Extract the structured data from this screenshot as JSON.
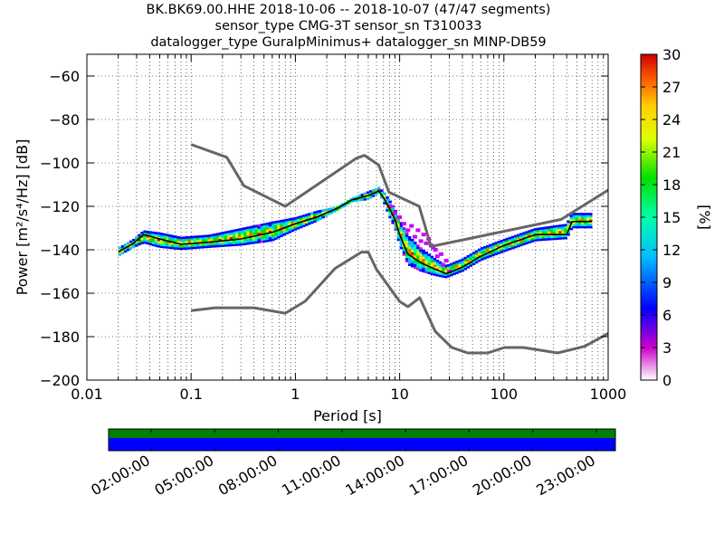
{
  "header": {
    "line1": "BK.BK69.00.HHE   2018-10-06 -- 2018-10-07  (47/47 segments)",
    "line2": "sensor_type CMG-3T sensor_sn T310033",
    "line3": "datalogger_type GuralpMinimus+ datalogger_sn MINP-DB59"
  },
  "chart_data": [
    {
      "type": "heatmap",
      "title": "BK.BK69.00.HHE   2018-10-06 -- 2018-10-07  (47/47 segments)",
      "xlabel": "Period [s]",
      "ylabel": "Power [m²/s⁴/Hz] [dB]",
      "x_scale": "log",
      "xlim": [
        0.01,
        1000
      ],
      "ylim": [
        -200,
        -50
      ],
      "x_tick_labels": [
        "0.01",
        "0.1",
        "1",
        "10",
        "100",
        "1000"
      ],
      "x_ticks": [
        0.01,
        0.1,
        1,
        10,
        100,
        1000
      ],
      "y_tick_labels": [
        "−200",
        "−180",
        "−160",
        "−140",
        "−120",
        "−100",
        "−80",
        "−60"
      ],
      "y_ticks": [
        -200,
        -180,
        -160,
        -140,
        -120,
        -100,
        -80,
        -60
      ],
      "grid": true,
      "colorbar": {
        "label": "[%]",
        "min": 0,
        "max": 30,
        "tick_labels": [
          "0",
          "3",
          "6",
          "9",
          "12",
          "15",
          "18",
          "21",
          "24",
          "27",
          "30"
        ],
        "ticks": [
          0,
          3,
          6,
          9,
          12,
          15,
          18,
          21,
          24,
          27,
          30
        ]
      },
      "series": [
        {
          "role": "new-high-noise-model",
          "color": "#666666",
          "x": [
            0.1,
            0.22,
            0.32,
            0.8,
            3.8,
            4.6,
            6.3,
            7.9,
            15.4,
            20,
            354.8,
            1000
          ],
          "y": [
            -91.5,
            -97.4,
            -110.5,
            -120,
            -98,
            -96.5,
            -101,
            -113.5,
            -120,
            -138.5,
            -126,
            -112.5
          ]
        },
        {
          "role": "new-low-noise-model",
          "color": "#666666",
          "x": [
            0.1,
            0.17,
            0.4,
            0.8,
            1.24,
            2.4,
            4.3,
            5,
            6,
            10,
            12,
            15.6,
            21.9,
            31.6,
            45,
            70,
            101,
            154,
            328,
            600,
            1000
          ],
          "y": [
            -168,
            -166.7,
            -166.7,
            -169.2,
            -163.7,
            -148.6,
            -141.1,
            -141.1,
            -149,
            -163.8,
            -166.2,
            -162.1,
            -177.5,
            -185,
            -187.5,
            -187.5,
            -185,
            -185,
            -187.5,
            -184.4,
            -178.5
          ]
        },
        {
          "role": "mode-line",
          "color": "#000000",
          "x": [
            0.02,
            0.028,
            0.035,
            0.05,
            0.08,
            0.15,
            0.3,
            0.6,
            1,
            1.6,
            2.5,
            3.5,
            5,
            6.3,
            7,
            8,
            9,
            10,
            12,
            16,
            22,
            28,
            40,
            60,
            100,
            200,
            400,
            450,
            700
          ],
          "y": [
            -141,
            -137,
            -133,
            -135,
            -137.5,
            -136.5,
            -135,
            -132,
            -128,
            -125,
            -121,
            -117,
            -115,
            -113,
            -116,
            -121,
            -126,
            -133,
            -142,
            -146,
            -149,
            -151,
            -148,
            -143,
            -138,
            -133,
            -133,
            -127,
            -127
          ]
        }
      ],
      "band": {
        "x": [
          0.02,
          0.028,
          0.035,
          0.05,
          0.08,
          0.15,
          0.3,
          0.6,
          1,
          1.6,
          2.5,
          3.5,
          5,
          6.3,
          7,
          8,
          9,
          10,
          12,
          16,
          22,
          28,
          40,
          60,
          100,
          200,
          400,
          450,
          700
        ],
        "low": [
          -143,
          -139,
          -137,
          -139,
          -140,
          -139,
          -138,
          -136,
          -131,
          -127,
          -122,
          -118,
          -117,
          -114,
          -118,
          -125,
          -130,
          -138,
          -147,
          -150,
          -152,
          -153,
          -150,
          -145,
          -141,
          -136,
          -135,
          -130,
          -130
        ],
        "high": [
          -139,
          -135,
          -131,
          -132,
          -134,
          -133,
          -130,
          -127,
          -125,
          -122,
          -120,
          -116,
          -113,
          -111,
          -113,
          -117,
          -121,
          -126,
          -133,
          -139,
          -144,
          -147,
          -144,
          -139,
          -135,
          -130,
          -128,
          -123,
          -123
        ]
      },
      "outliers": {
        "x": [
          8,
          10,
          12,
          14,
          16,
          18,
          20,
          22,
          25,
          28,
          9,
          11,
          13,
          15,
          17,
          19,
          21,
          23,
          26,
          30
        ],
        "y": [
          -120,
          -125,
          -131,
          -134,
          -136,
          -137,
          -138,
          -140,
          -142,
          -145,
          -123,
          -128,
          -129,
          -131,
          -133,
          -135,
          -139,
          -143,
          -147,
          -150
        ]
      }
    },
    {
      "type": "timeline",
      "x_tick_labels": [
        "02:00:00",
        "05:00:00",
        "08:00:00",
        "11:00:00",
        "14:00:00",
        "17:00:00",
        "20:00:00",
        "23:00:00"
      ],
      "tracks": [
        {
          "color": "#008000",
          "start": 0,
          "end": 1
        },
        {
          "color": "#0000ff",
          "start": 0,
          "end": 1
        }
      ]
    }
  ]
}
